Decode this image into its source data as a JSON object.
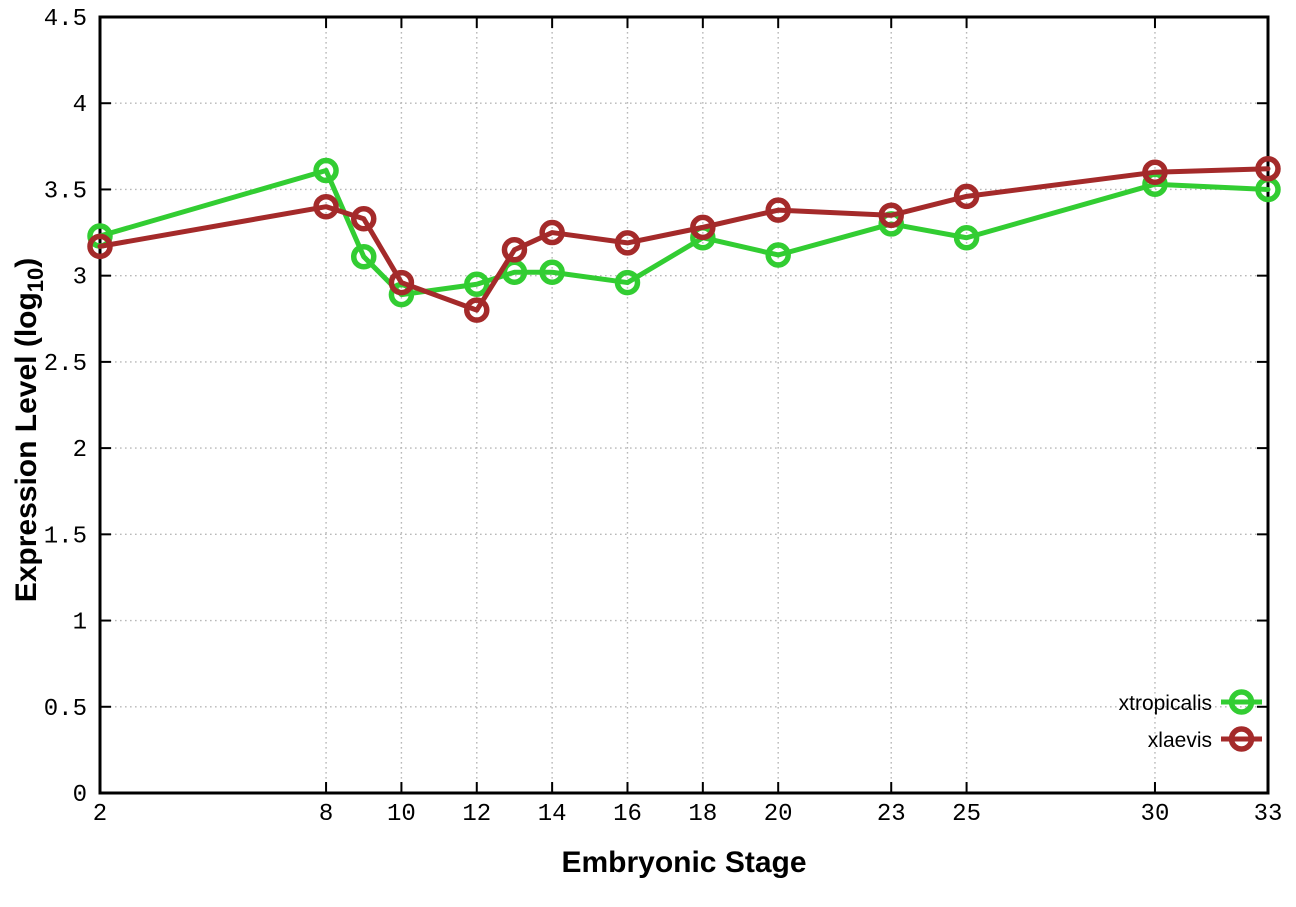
{
  "figure": {
    "background_color": "#ffffff",
    "border_color": "#000000",
    "grid_color": "#b8b8b8",
    "xlabel": "Embryonic Stage",
    "ylabel_prefix": "Expression Level (log",
    "ylabel_sub": "10",
    "ylabel_suffix": ")"
  },
  "chart_data": {
    "type": "line",
    "title": "",
    "xlabel": "Embryonic Stage",
    "ylabel": "Expression Level (log10)",
    "x": [
      2,
      8,
      9,
      10,
      12,
      13,
      14,
      16,
      18,
      20,
      23,
      25,
      30,
      33
    ],
    "series": [
      {
        "name": "xtropicalis",
        "color": "#32cd32",
        "values": [
          3.23,
          3.61,
          3.11,
          2.89,
          2.95,
          3.02,
          3.02,
          2.96,
          3.22,
          3.12,
          3.3,
          3.22,
          3.53,
          3.5
        ]
      },
      {
        "name": "xlaevis",
        "color": "#a42a2a",
        "values": [
          3.17,
          3.4,
          3.33,
          2.96,
          2.8,
          3.15,
          3.25,
          3.19,
          3.28,
          3.38,
          3.35,
          3.46,
          3.6,
          3.62
        ]
      }
    ],
    "xlim": [
      2,
      33
    ],
    "ylim": [
      0,
      4.5
    ],
    "x_ticks": [
      2,
      8,
      10,
      12,
      14,
      16,
      18,
      20,
      23,
      25,
      30,
      33
    ],
    "y_ticks": [
      0,
      0.5,
      1,
      1.5,
      2,
      2.5,
      3,
      3.5,
      4,
      4.5
    ],
    "grid": true,
    "grid_style": "dotted",
    "legend_position": "inside-bottom-right",
    "legend_entries": [
      "xtropicalis",
      "xlaevis"
    ]
  }
}
